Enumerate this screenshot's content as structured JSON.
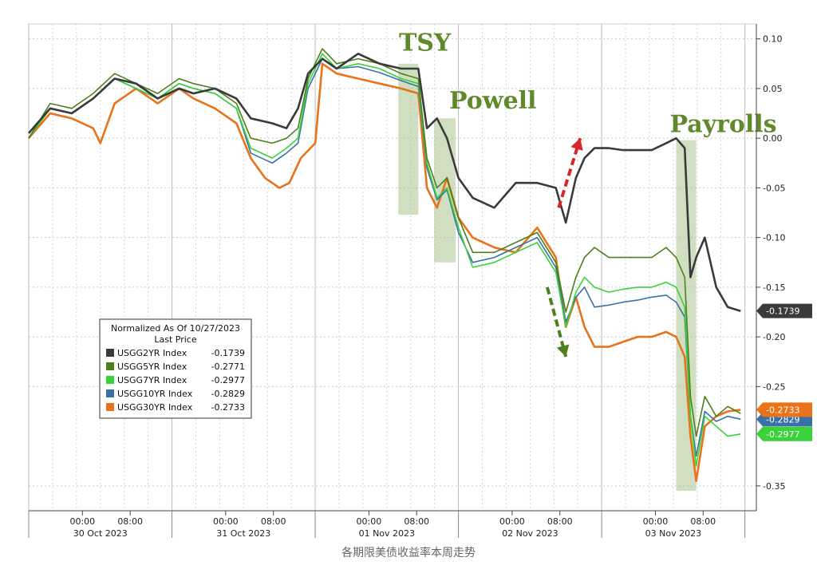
{
  "caption": "各期限美债收益率本周走势",
  "chart_data": {
    "type": "line",
    "legend": {
      "title": "Normalized As Of 10/27/2023",
      "subtitle": "Last Price",
      "placement": "lower-left"
    },
    "y_ticks": [
      "0.10",
      "0.05",
      "0.00",
      "-0.05",
      "-0.10",
      "-0.15",
      "-0.20",
      "-0.25",
      "-0.35"
    ],
    "ylim": [
      -0.375,
      0.115
    ],
    "x_time_labels": [
      "00:00",
      "08:00",
      "00:00",
      "08:00",
      "00:00",
      "08:00",
      "00:00",
      "08:00",
      "00:00",
      "08:00"
    ],
    "x_date_labels": [
      "30 Oct 2023",
      "31 Oct 2023",
      "01 Nov 2023",
      "02 Nov 2023",
      "03 Nov 2023"
    ],
    "events": [
      {
        "label": "TSY",
        "x_start": 2.58,
        "x_end": 2.72
      },
      {
        "label": "Powell",
        "x_start": 2.83,
        "x_end": 2.98
      },
      {
        "label": "Payrolls",
        "x_start": 4.52,
        "x_end": 4.66
      }
    ],
    "arrows": [
      {
        "color": "#d62728",
        "direction": "up",
        "from": [
          3.7,
          -0.07
        ],
        "to": [
          3.85,
          0.0
        ]
      },
      {
        "color": "#4d7f1c",
        "direction": "down",
        "from": [
          3.62,
          -0.15
        ],
        "to": [
          3.75,
          -0.22
        ]
      }
    ],
    "series": [
      {
        "name": "USGG2YR Index",
        "last_label": "-0.1739",
        "last": -0.1739,
        "color": "#3a3a3a",
        "points": [
          [
            0,
            0.005
          ],
          [
            0.15,
            0.03
          ],
          [
            0.3,
            0.025
          ],
          [
            0.45,
            0.04
          ],
          [
            0.6,
            0.06
          ],
          [
            0.75,
            0.055
          ],
          [
            0.9,
            0.04
          ],
          [
            1.05,
            0.05
          ],
          [
            1.15,
            0.045
          ],
          [
            1.3,
            0.05
          ],
          [
            1.45,
            0.04
          ],
          [
            1.55,
            0.02
          ],
          [
            1.7,
            0.015
          ],
          [
            1.8,
            0.01
          ],
          [
            1.88,
            0.03
          ],
          [
            1.95,
            0.065
          ],
          [
            2.05,
            0.08
          ],
          [
            2.15,
            0.07
          ],
          [
            2.3,
            0.085
          ],
          [
            2.45,
            0.075
          ],
          [
            2.6,
            0.07
          ],
          [
            2.72,
            0.07
          ],
          [
            2.78,
            0.01
          ],
          [
            2.85,
            0.02
          ],
          [
            2.92,
            0.0
          ],
          [
            3.0,
            -0.04
          ],
          [
            3.1,
            -0.06
          ],
          [
            3.25,
            -0.07
          ],
          [
            3.4,
            -0.045
          ],
          [
            3.55,
            -0.045
          ],
          [
            3.68,
            -0.05
          ],
          [
            3.75,
            -0.085
          ],
          [
            3.82,
            -0.04
          ],
          [
            3.88,
            -0.02
          ],
          [
            3.95,
            -0.01
          ],
          [
            4.05,
            -0.01
          ],
          [
            4.15,
            -0.012
          ],
          [
            4.25,
            -0.012
          ],
          [
            4.35,
            -0.012
          ],
          [
            4.45,
            -0.005
          ],
          [
            4.52,
            0.0
          ],
          [
            4.58,
            -0.01
          ],
          [
            4.62,
            -0.14
          ],
          [
            4.66,
            -0.12
          ],
          [
            4.72,
            -0.1
          ],
          [
            4.8,
            -0.15
          ],
          [
            4.88,
            -0.17
          ],
          [
            4.97,
            -0.1739
          ]
        ]
      },
      {
        "name": "USGG5YR Index",
        "last_label": "-0.2771",
        "last": -0.2771,
        "color": "#4d7f1c",
        "points": [
          [
            0,
            0.0
          ],
          [
            0.15,
            0.035
          ],
          [
            0.3,
            0.03
          ],
          [
            0.45,
            0.045
          ],
          [
            0.6,
            0.065
          ],
          [
            0.75,
            0.055
          ],
          [
            0.9,
            0.045
          ],
          [
            1.05,
            0.06
          ],
          [
            1.15,
            0.055
          ],
          [
            1.3,
            0.05
          ],
          [
            1.45,
            0.035
          ],
          [
            1.55,
            0.0
          ],
          [
            1.7,
            -0.005
          ],
          [
            1.8,
            0.0
          ],
          [
            1.88,
            0.01
          ],
          [
            1.95,
            0.06
          ],
          [
            2.05,
            0.09
          ],
          [
            2.15,
            0.075
          ],
          [
            2.3,
            0.08
          ],
          [
            2.45,
            0.075
          ],
          [
            2.6,
            0.065
          ],
          [
            2.72,
            0.06
          ],
          [
            2.78,
            -0.02
          ],
          [
            2.85,
            -0.05
          ],
          [
            2.92,
            -0.04
          ],
          [
            3.0,
            -0.08
          ],
          [
            3.1,
            -0.115
          ],
          [
            3.25,
            -0.115
          ],
          [
            3.4,
            -0.105
          ],
          [
            3.55,
            -0.095
          ],
          [
            3.68,
            -0.125
          ],
          [
            3.75,
            -0.175
          ],
          [
            3.82,
            -0.14
          ],
          [
            3.88,
            -0.12
          ],
          [
            3.95,
            -0.11
          ],
          [
            4.05,
            -0.12
          ],
          [
            4.15,
            -0.12
          ],
          [
            4.25,
            -0.12
          ],
          [
            4.35,
            -0.12
          ],
          [
            4.45,
            -0.11
          ],
          [
            4.52,
            -0.12
          ],
          [
            4.58,
            -0.14
          ],
          [
            4.62,
            -0.26
          ],
          [
            4.66,
            -0.3
          ],
          [
            4.72,
            -0.26
          ],
          [
            4.8,
            -0.28
          ],
          [
            4.88,
            -0.27
          ],
          [
            4.97,
            -0.2771
          ]
        ]
      },
      {
        "name": "USGG7YR Index",
        "last_label": "-0.2977",
        "last": -0.2977,
        "color": "#39d339",
        "points": [
          [
            0,
            0.0
          ],
          [
            0.15,
            0.03
          ],
          [
            0.3,
            0.025
          ],
          [
            0.45,
            0.04
          ],
          [
            0.6,
            0.06
          ],
          [
            0.75,
            0.05
          ],
          [
            0.9,
            0.04
          ],
          [
            1.05,
            0.055
          ],
          [
            1.15,
            0.05
          ],
          [
            1.3,
            0.045
          ],
          [
            1.45,
            0.03
          ],
          [
            1.55,
            -0.01
          ],
          [
            1.7,
            -0.02
          ],
          [
            1.8,
            -0.01
          ],
          [
            1.88,
            0.0
          ],
          [
            1.95,
            0.055
          ],
          [
            2.05,
            0.085
          ],
          [
            2.15,
            0.07
          ],
          [
            2.3,
            0.075
          ],
          [
            2.45,
            0.07
          ],
          [
            2.6,
            0.06
          ],
          [
            2.72,
            0.055
          ],
          [
            2.78,
            -0.025
          ],
          [
            2.85,
            -0.06
          ],
          [
            2.92,
            -0.05
          ],
          [
            3.0,
            -0.09
          ],
          [
            3.1,
            -0.13
          ],
          [
            3.25,
            -0.125
          ],
          [
            3.4,
            -0.115
          ],
          [
            3.55,
            -0.105
          ],
          [
            3.68,
            -0.135
          ],
          [
            3.75,
            -0.19
          ],
          [
            3.82,
            -0.155
          ],
          [
            3.88,
            -0.14
          ],
          [
            3.95,
            -0.15
          ],
          [
            4.05,
            -0.155
          ],
          [
            4.15,
            -0.152
          ],
          [
            4.25,
            -0.15
          ],
          [
            4.35,
            -0.15
          ],
          [
            4.45,
            -0.145
          ],
          [
            4.52,
            -0.15
          ],
          [
            4.58,
            -0.17
          ],
          [
            4.62,
            -0.28
          ],
          [
            4.66,
            -0.33
          ],
          [
            4.72,
            -0.28
          ],
          [
            4.8,
            -0.29
          ],
          [
            4.88,
            -0.3
          ],
          [
            4.97,
            -0.2977
          ]
        ]
      },
      {
        "name": "USGG10YR Index",
        "last_label": "-0.2829",
        "last": -0.2829,
        "color": "#3a72a8",
        "points": [
          [
            0,
            0.0
          ],
          [
            0.15,
            0.03
          ],
          [
            0.3,
            0.025
          ],
          [
            0.45,
            0.04
          ],
          [
            0.6,
            0.06
          ],
          [
            0.75,
            0.05
          ],
          [
            0.9,
            0.04
          ],
          [
            1.05,
            0.055
          ],
          [
            1.15,
            0.05
          ],
          [
            1.3,
            0.045
          ],
          [
            1.45,
            0.03
          ],
          [
            1.55,
            -0.015
          ],
          [
            1.7,
            -0.025
          ],
          [
            1.8,
            -0.015
          ],
          [
            1.88,
            -0.005
          ],
          [
            1.95,
            0.05
          ],
          [
            2.05,
            0.08
          ],
          [
            2.15,
            0.07
          ],
          [
            2.3,
            0.072
          ],
          [
            2.45,
            0.066
          ],
          [
            2.6,
            0.058
          ],
          [
            2.72,
            0.052
          ],
          [
            2.78,
            -0.03
          ],
          [
            2.85,
            -0.062
          ],
          [
            2.92,
            -0.052
          ],
          [
            3.0,
            -0.095
          ],
          [
            3.1,
            -0.125
          ],
          [
            3.25,
            -0.12
          ],
          [
            3.4,
            -0.11
          ],
          [
            3.55,
            -0.1
          ],
          [
            3.68,
            -0.13
          ],
          [
            3.75,
            -0.185
          ],
          [
            3.82,
            -0.16
          ],
          [
            3.88,
            -0.15
          ],
          [
            3.95,
            -0.17
          ],
          [
            4.05,
            -0.168
          ],
          [
            4.15,
            -0.165
          ],
          [
            4.25,
            -0.163
          ],
          [
            4.35,
            -0.16
          ],
          [
            4.45,
            -0.158
          ],
          [
            4.52,
            -0.165
          ],
          [
            4.58,
            -0.18
          ],
          [
            4.62,
            -0.28
          ],
          [
            4.66,
            -0.32
          ],
          [
            4.72,
            -0.275
          ],
          [
            4.8,
            -0.285
          ],
          [
            4.88,
            -0.28
          ],
          [
            4.97,
            -0.2829
          ]
        ]
      },
      {
        "name": "USGG30YR Index",
        "last_label": "-0.2733",
        "last": -0.2733,
        "color": "#e8731a",
        "points": [
          [
            0,
            0.0
          ],
          [
            0.15,
            0.025
          ],
          [
            0.3,
            0.02
          ],
          [
            0.45,
            0.01
          ],
          [
            0.5,
            -0.005
          ],
          [
            0.6,
            0.035
          ],
          [
            0.75,
            0.05
          ],
          [
            0.9,
            0.035
          ],
          [
            1.05,
            0.05
          ],
          [
            1.15,
            0.04
          ],
          [
            1.3,
            0.03
          ],
          [
            1.45,
            0.015
          ],
          [
            1.55,
            -0.02
          ],
          [
            1.65,
            -0.04
          ],
          [
            1.75,
            -0.05
          ],
          [
            1.82,
            -0.045
          ],
          [
            1.9,
            -0.02
          ],
          [
            2.0,
            -0.005
          ],
          [
            2.05,
            0.075
          ],
          [
            2.15,
            0.065
          ],
          [
            2.3,
            0.06
          ],
          [
            2.45,
            0.055
          ],
          [
            2.6,
            0.05
          ],
          [
            2.72,
            0.045
          ],
          [
            2.78,
            -0.05
          ],
          [
            2.85,
            -0.07
          ],
          [
            2.92,
            -0.04
          ],
          [
            3.0,
            -0.08
          ],
          [
            3.1,
            -0.1
          ],
          [
            3.25,
            -0.11
          ],
          [
            3.4,
            -0.115
          ],
          [
            3.55,
            -0.09
          ],
          [
            3.68,
            -0.12
          ],
          [
            3.75,
            -0.19
          ],
          [
            3.82,
            -0.16
          ],
          [
            3.88,
            -0.19
          ],
          [
            3.95,
            -0.21
          ],
          [
            4.05,
            -0.21
          ],
          [
            4.15,
            -0.205
          ],
          [
            4.25,
            -0.2
          ],
          [
            4.35,
            -0.2
          ],
          [
            4.45,
            -0.195
          ],
          [
            4.52,
            -0.2
          ],
          [
            4.58,
            -0.22
          ],
          [
            4.62,
            -0.3
          ],
          [
            4.66,
            -0.345
          ],
          [
            4.72,
            -0.29
          ],
          [
            4.8,
            -0.28
          ],
          [
            4.88,
            -0.275
          ],
          [
            4.97,
            -0.2733
          ]
        ]
      }
    ]
  }
}
